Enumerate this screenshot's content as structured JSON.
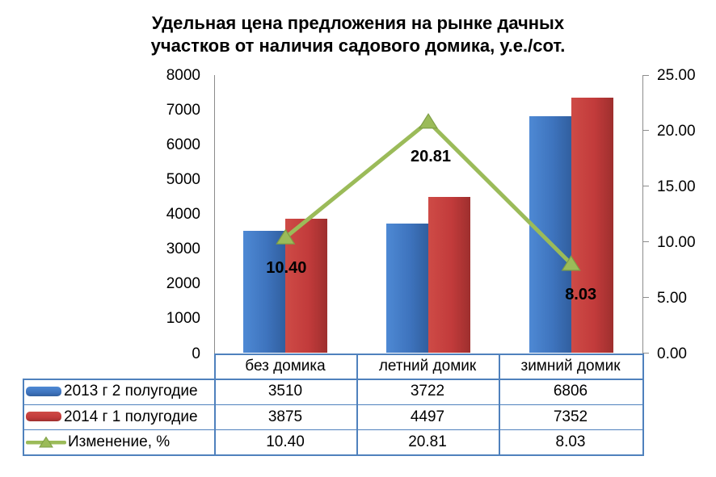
{
  "title": {
    "lines": [
      "Удельная цена предложения на рынке дачных",
      "участков от наличия садового домика, у.е./сот."
    ]
  },
  "colors": {
    "bar_blue": "#3E74BE",
    "bar_blue_light": "#4E89D4",
    "bar_blue_dark": "#315F9F",
    "bar_red": "#C23B3B",
    "bar_red_light": "#CE4B46",
    "bar_red_dark": "#9E2F2E",
    "line_green": "#9BBB59",
    "line_green_dark": "#7E9E46",
    "table_border": "#4F81BD",
    "axis_gray": "#8C8C8C",
    "text": "#000000"
  },
  "chart_data": {
    "type": "combo bar + line, secondary right axis",
    "title": "Удельная цена предложения на рынке дачных участков от наличия садового домика, у.е./сот.",
    "categories": [
      "без домика",
      "летний домик",
      "зимний домик"
    ],
    "series": [
      {
        "name": "2013 г 2 полугодие",
        "type": "bar",
        "axis": "left",
        "color_key": "bar_blue",
        "values": [
          3510,
          3722,
          6806
        ]
      },
      {
        "name": "2014 г 1 полугодие",
        "type": "bar",
        "axis": "left",
        "color_key": "bar_red",
        "values": [
          3875,
          4497,
          7352
        ]
      },
      {
        "name": "Изменение, %",
        "type": "line",
        "axis": "right",
        "color_key": "line_green",
        "values": [
          10.4,
          20.81,
          8.03
        ],
        "point_labels": [
          "10.40",
          "20.81",
          "8.03"
        ]
      }
    ],
    "left_axis": {
      "min": 0,
      "max": 8000,
      "step": 1000,
      "tick_labels": [
        "0",
        "1000",
        "2000",
        "3000",
        "4000",
        "5000",
        "6000",
        "7000",
        "8000"
      ]
    },
    "right_axis": {
      "min": 0,
      "max": 25,
      "step": 5,
      "tick_labels": [
        "0.00",
        "5.00",
        "10.00",
        "15.00",
        "20.00",
        "25.00"
      ]
    },
    "gridlines": false,
    "legend_position": "data-table-left-column"
  },
  "table": {
    "rows": [
      {
        "label": "2013 г 2 полугодие",
        "swatch": "bar-blue",
        "values": [
          "3510",
          "3722",
          "6806"
        ]
      },
      {
        "label": "2014 г 1 полугодие",
        "swatch": "bar-red",
        "values": [
          "3875",
          "4497",
          "7352"
        ]
      },
      {
        "label": "Изменение, %",
        "swatch": "line-green",
        "values": [
          "10.40",
          "20.81",
          "8.03"
        ]
      }
    ]
  }
}
